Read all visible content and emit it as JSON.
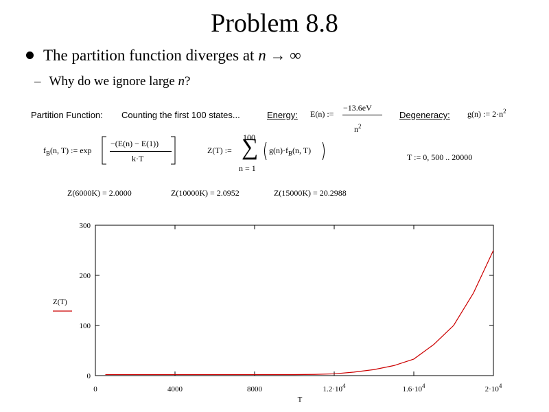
{
  "slide": {
    "title": "Problem 8.8",
    "bullet_prefix": "The partition function diverges at",
    "bullet_var": "n",
    "bullet_arrow": "→",
    "bullet_inf": "∞",
    "sub_dash": "–",
    "sub_text": "Why do we ignore large",
    "sub_var": "n",
    "sub_q": "?"
  },
  "worksheet": {
    "partition_label": "Partition Function:",
    "counting_label": "Counting the first 100 states...",
    "energy_label": "Energy:",
    "energy_lhs": "E(n) :=",
    "energy_num": "−13.6eV",
    "energy_den": "n",
    "energy_den_exp": "2",
    "degeneracy_label": "Degeneracy:",
    "degeneracy_expr": "g(n) := 2·n",
    "degeneracy_exp": "2",
    "fb_lhs_f": "f",
    "fb_lhs_sub": "B",
    "fb_lhs_rest": "(n, T) := exp",
    "fb_num": "−(E(n) − E(1))",
    "fb_den": "k·T",
    "z_lhs": "Z(T) :=",
    "sum_upper": "100",
    "sum_lower": "n = 1",
    "sum_symbol": "∑",
    "sum_body_pre": "g(n)·f",
    "sum_body_sub": "B",
    "sum_body_post": "(n, T)",
    "t_range": "T := 0, 500 .. 20000",
    "results": [
      "Z(6000K) = 2.0000",
      "Z(10000K) = 2.0952",
      "Z(15000K) = 20.2988"
    ]
  },
  "chart_data": {
    "type": "line",
    "xlabel": "T",
    "ylabel": "",
    "legend": [
      {
        "name": "Z(T)",
        "color": "#cc0000"
      }
    ],
    "xlim": [
      0,
      20000
    ],
    "ylim": [
      0,
      300
    ],
    "x_ticks": [
      0,
      4000,
      8000,
      12000,
      16000,
      20000
    ],
    "x_tick_labels": [
      {
        "base": "0",
        "exp": ""
      },
      {
        "base": "4000",
        "exp": ""
      },
      {
        "base": "8000",
        "exp": ""
      },
      {
        "base": "1.2·10",
        "exp": "4"
      },
      {
        "base": "1.6·10",
        "exp": "4"
      },
      {
        "base": "2·10",
        "exp": "4"
      }
    ],
    "y_ticks": [
      0,
      100,
      200,
      300
    ],
    "y_tick_labels": [
      "0",
      "100",
      "200",
      "300"
    ],
    "series": [
      {
        "name": "Z(T)",
        "color": "#cc0000",
        "x": [
          500,
          4000,
          8000,
          10000,
          11000,
          12000,
          13000,
          14000,
          15000,
          16000,
          17000,
          18000,
          19000,
          20000
        ],
        "y": [
          2,
          2,
          2,
          2.1,
          2.4,
          3.5,
          7,
          12,
          20,
          33,
          62,
          100,
          165,
          250
        ]
      }
    ]
  }
}
